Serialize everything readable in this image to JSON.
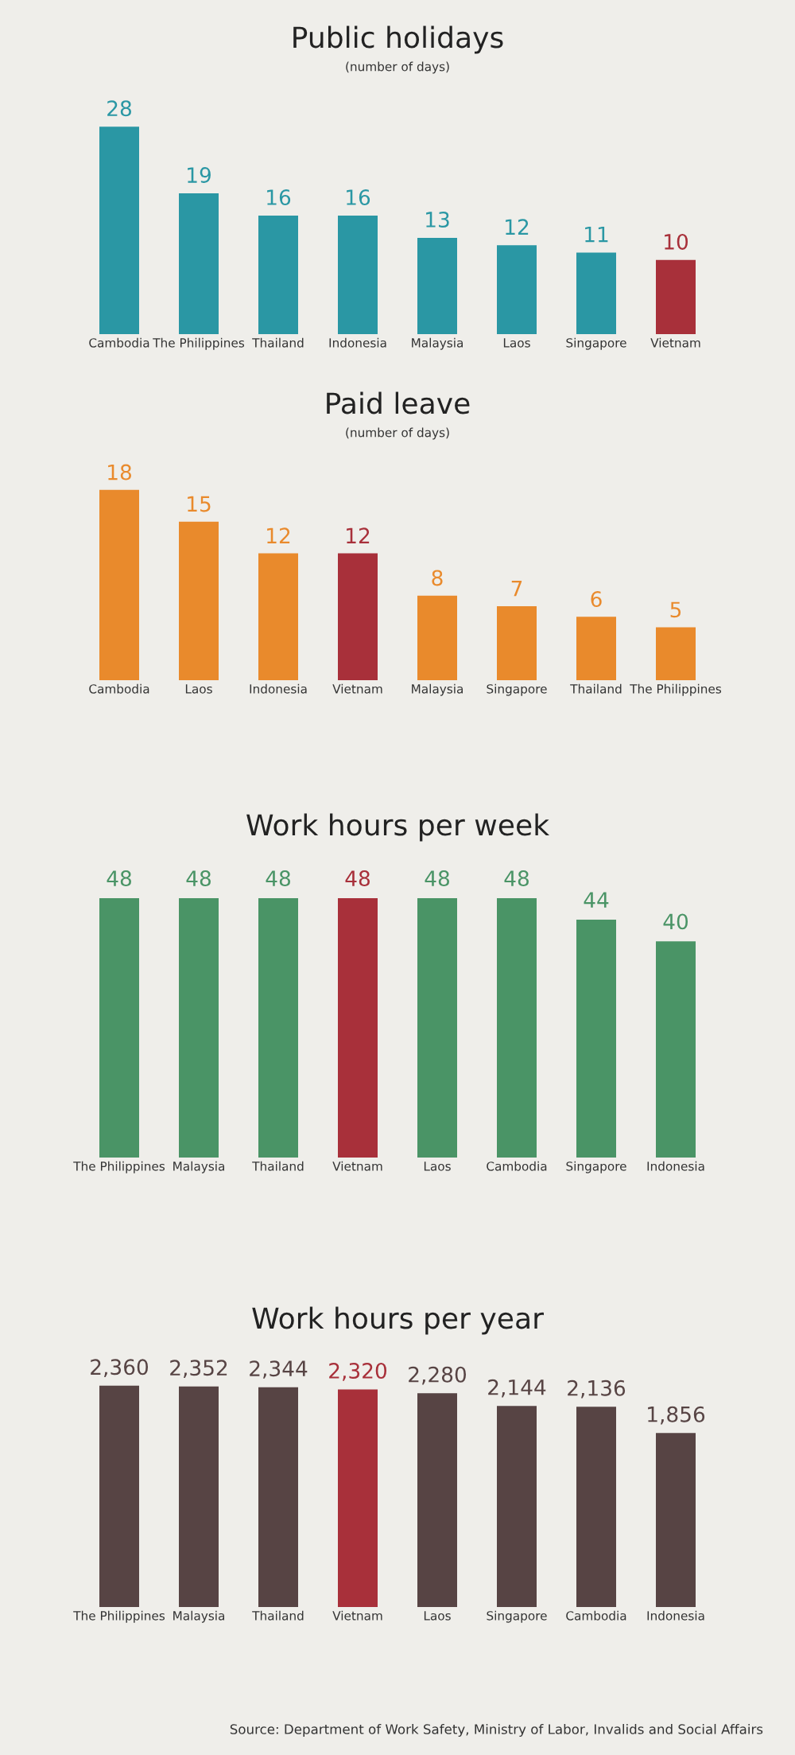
{
  "chart_data": [
    {
      "type": "bar",
      "title": "Public holidays",
      "subtitle": "(number of days)",
      "categories": [
        "Cambodia",
        "The Philippines",
        "Thailand",
        "Indonesia",
        "Malaysia",
        "Laos",
        "Singapore",
        "Vietnam"
      ],
      "values": [
        28,
        19,
        16,
        16,
        13,
        12,
        11,
        10
      ],
      "colors": [
        "#2a97a4",
        "#2a97a4",
        "#2a97a4",
        "#2a97a4",
        "#2a97a4",
        "#2a97a4",
        "#2a97a4",
        "#a8303a"
      ],
      "data_labels": true
    },
    {
      "type": "bar",
      "title": "Paid leave",
      "subtitle": "(number of days)",
      "categories": [
        "Cambodia",
        "Laos",
        "Indonesia",
        "Vietnam",
        "Malaysia",
        "Singapore",
        "Thailand",
        "The Philippines"
      ],
      "values": [
        18,
        15,
        12,
        12,
        8,
        7,
        6,
        5
      ],
      "colors": [
        "#e98a2c",
        "#e98a2c",
        "#e98a2c",
        "#a8303a",
        "#e98a2c",
        "#e98a2c",
        "#e98a2c",
        "#e98a2c"
      ],
      "data_labels": true
    },
    {
      "type": "bar",
      "title": "Work hours per week",
      "categories": [
        "The Philippines",
        "Malaysia",
        "Thailand",
        "Vietnam",
        "Laos",
        "Cambodia",
        "Singapore",
        "Indonesia"
      ],
      "values": [
        48,
        48,
        48,
        48,
        48,
        48,
        44,
        40
      ],
      "colors": [
        "#4a9466",
        "#4a9466",
        "#4a9466",
        "#a8303a",
        "#4a9466",
        "#4a9466",
        "#4a9466",
        "#4a9466"
      ],
      "data_labels": true
    },
    {
      "type": "bar",
      "title": "Work hours per year",
      "categories": [
        "The Philippines",
        "Malaysia",
        "Thailand",
        "Vietnam",
        "Laos",
        "Singapore",
        "Cambodia",
        "Indonesia"
      ],
      "values": [
        2360,
        2352,
        2344,
        2320,
        2280,
        2144,
        2136,
        1856
      ],
      "colors": [
        "#574444",
        "#574444",
        "#574444",
        "#a8303a",
        "#574444",
        "#574444",
        "#574444",
        "#574444"
      ],
      "value_labels": [
        "2,360",
        "2,352",
        "2,344",
        "2,320",
        "2,280",
        "2,144",
        "2,136",
        "1,856"
      ],
      "annotations": [
        "Source: Department of Work Safety, Ministry of Labor, Invalids and Social Affairs"
      ]
    }
  ]
}
